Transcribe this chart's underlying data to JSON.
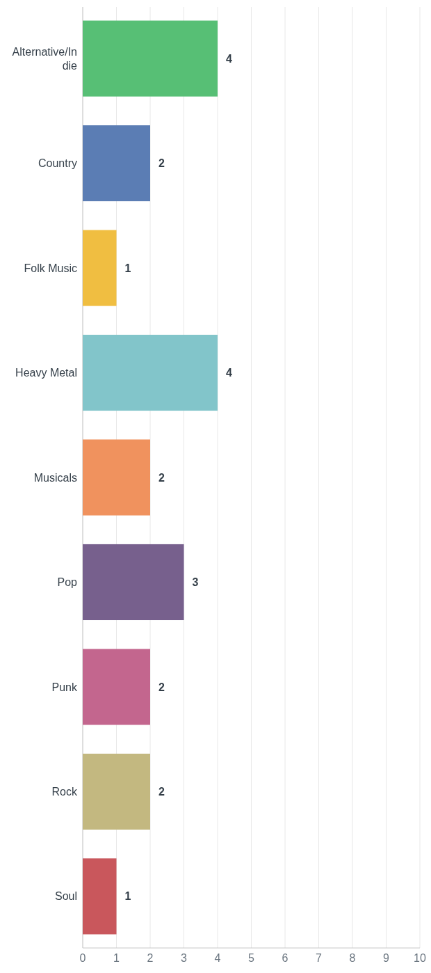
{
  "chart_data": {
    "type": "bar",
    "orientation": "horizontal",
    "categories": [
      "Alternative/Indie",
      "Country",
      "Folk Music",
      "Heavy Metal",
      "Musicals",
      "Pop",
      "Punk",
      "Rock",
      "Soul"
    ],
    "values": [
      4,
      2,
      1,
      4,
      2,
      3,
      2,
      2,
      1
    ],
    "colors": [
      "#57bf75",
      "#5b7db4",
      "#f0be41",
      "#82c5ca",
      "#f0925e",
      "#77608d",
      "#c3668e",
      "#c3b880",
      "#c9575c"
    ],
    "xlim": [
      0,
      10
    ],
    "xticks": [
      0,
      1,
      2,
      3,
      4,
      5,
      6,
      7,
      8,
      9,
      10
    ],
    "grid": "x",
    "data_labels": true
  }
}
